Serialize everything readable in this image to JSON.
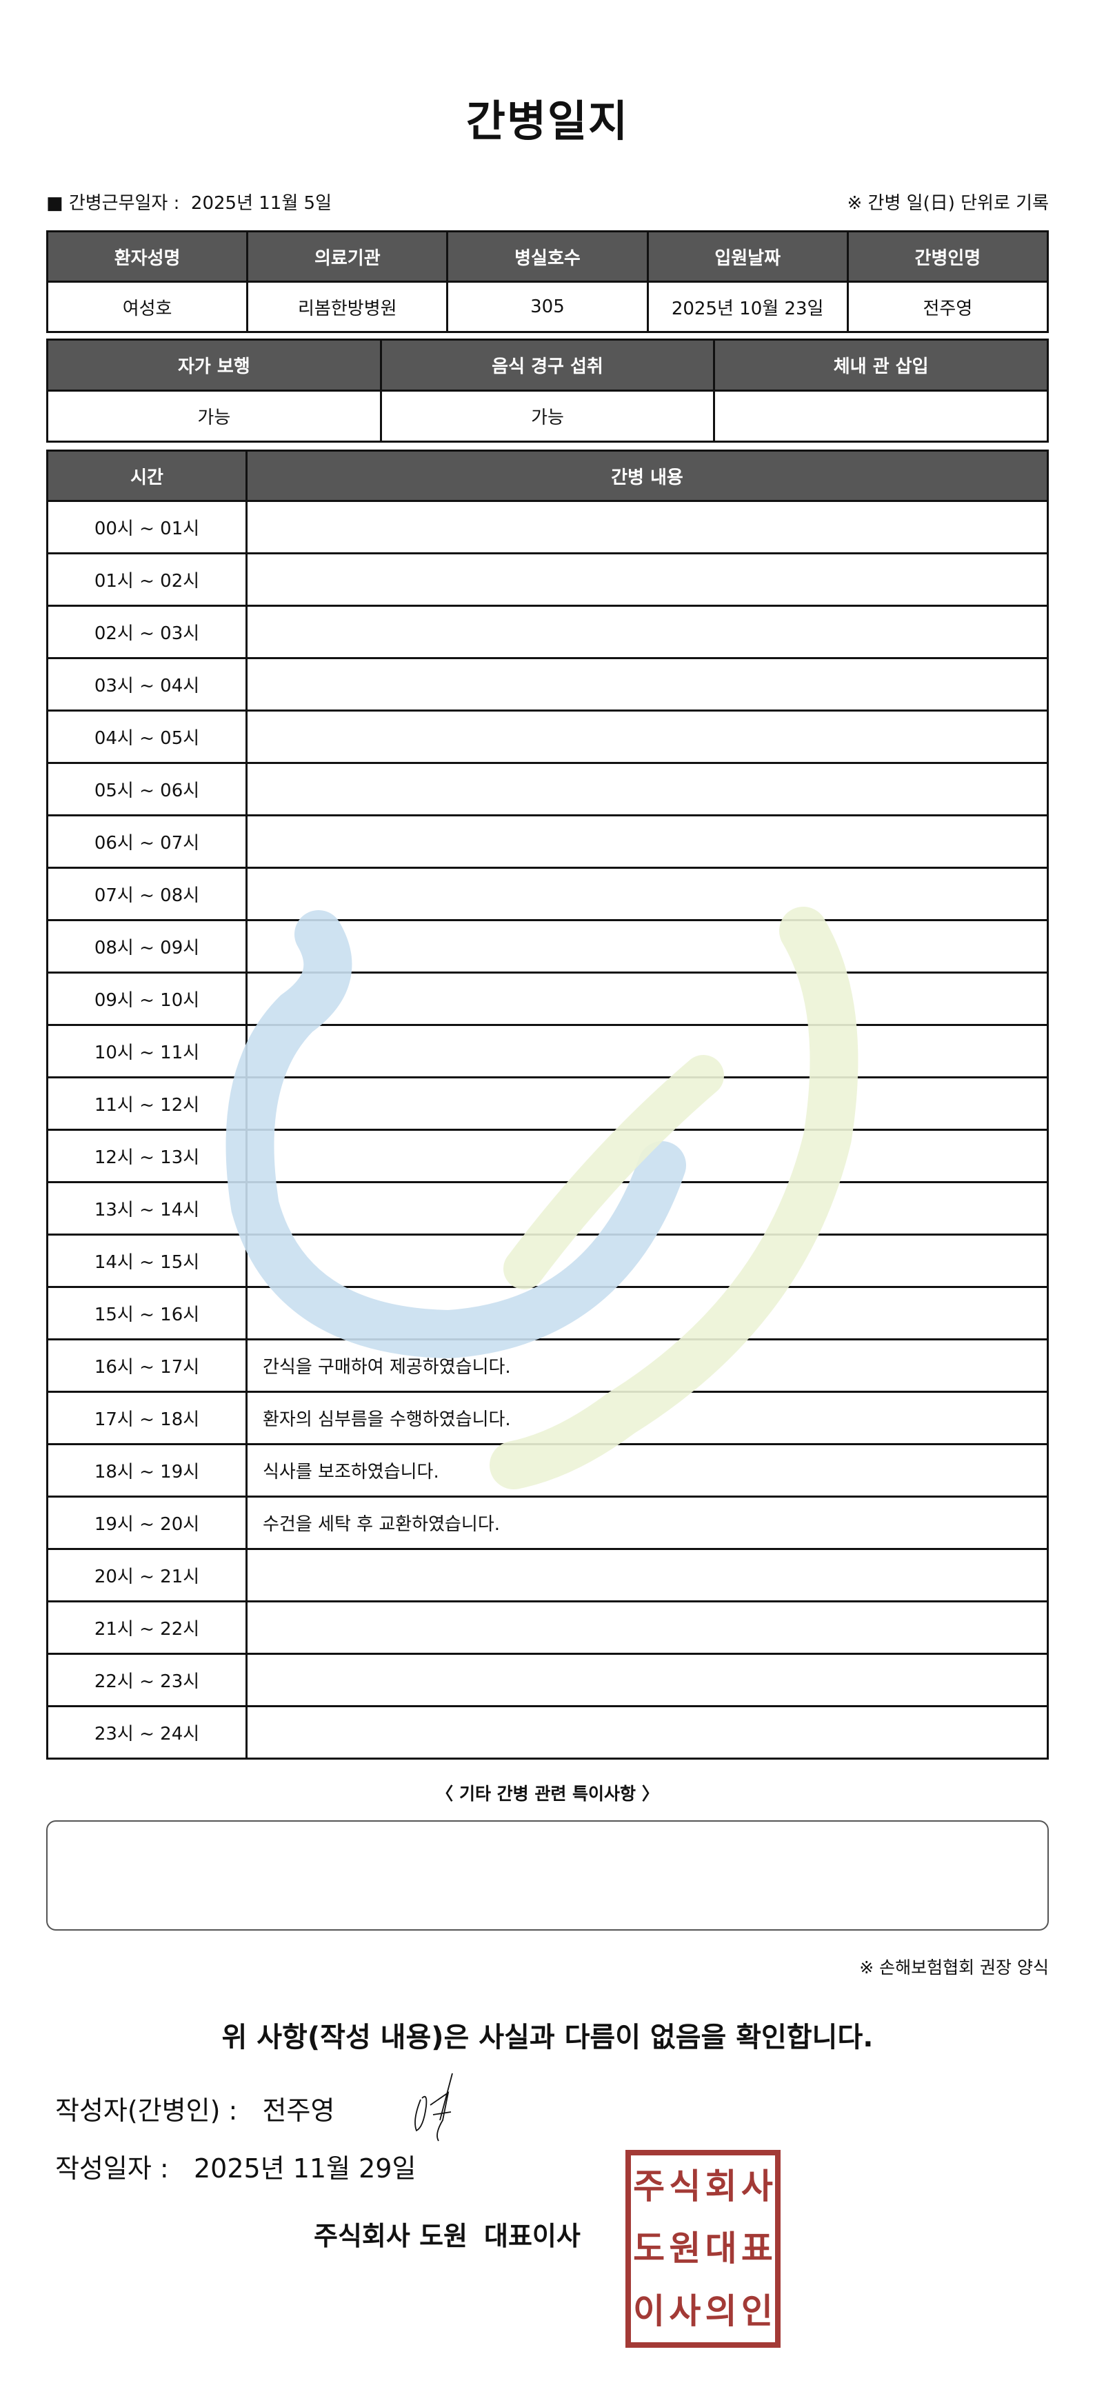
{
  "title": "간병일지",
  "info": {
    "work_date_label": "■ 간병근무일자 :",
    "work_date": "2025년 11월 5일",
    "note": "※ 간병 일(日) 단위로 기록"
  },
  "patient_table": {
    "headers": [
      "환자성명",
      "의료기관",
      "병실호수",
      "입원날짜",
      "간병인명"
    ],
    "values": [
      "여성호",
      "리봄한방병원",
      "305",
      "2025년 10월 23일",
      "전주영"
    ]
  },
  "status_table": {
    "headers": [
      "자가 보행",
      "음식 경구 섭취",
      "체내 관 삽입"
    ],
    "values": [
      "가능",
      "가능",
      ""
    ]
  },
  "care_table": {
    "headers": [
      "시간",
      "간병 내용"
    ],
    "rows": [
      {
        "time": "00시 ~ 01시",
        "content": ""
      },
      {
        "time": "01시 ~ 02시",
        "content": ""
      },
      {
        "time": "02시 ~ 03시",
        "content": ""
      },
      {
        "time": "03시 ~ 04시",
        "content": ""
      },
      {
        "time": "04시 ~ 05시",
        "content": ""
      },
      {
        "time": "05시 ~ 06시",
        "content": ""
      },
      {
        "time": "06시 ~ 07시",
        "content": ""
      },
      {
        "time": "07시 ~ 08시",
        "content": ""
      },
      {
        "time": "08시 ~ 09시",
        "content": ""
      },
      {
        "time": "09시 ~ 10시",
        "content": ""
      },
      {
        "time": "10시 ~ 11시",
        "content": ""
      },
      {
        "time": "11시 ~ 12시",
        "content": ""
      },
      {
        "time": "12시 ~ 13시",
        "content": ""
      },
      {
        "time": "13시 ~ 14시",
        "content": ""
      },
      {
        "time": "14시 ~ 15시",
        "content": ""
      },
      {
        "time": "15시 ~ 16시",
        "content": ""
      },
      {
        "time": "16시 ~ 17시",
        "content": "간식을 구매하여 제공하였습니다."
      },
      {
        "time": "17시 ~ 18시",
        "content": "환자의 심부름을 수행하였습니다."
      },
      {
        "time": "18시 ~ 19시",
        "content": "식사를 보조하였습니다."
      },
      {
        "time": "19시 ~ 20시",
        "content": "수건을 세탁 후 교환하였습니다."
      },
      {
        "time": "20시 ~ 21시",
        "content": ""
      },
      {
        "time": "21시 ~ 22시",
        "content": ""
      },
      {
        "time": "22시 ~ 23시",
        "content": ""
      },
      {
        "time": "23시 ~ 24시",
        "content": ""
      }
    ]
  },
  "notes": {
    "title": "〈 기타 간병 관련 특이사항 〉",
    "value": ""
  },
  "form_note": "※ 손해보험협회 권장 양식",
  "confirm_text": "위 사항(작성 내용)은 사실과 다름이 없음을 확인합니다.",
  "writer": {
    "label": "작성자(간병인) :",
    "name": "전주영"
  },
  "written_date": {
    "label": "작성일자 :",
    "value": "2025년 11월 29일"
  },
  "company": {
    "name": "주식회사 도원",
    "title": "대표이사"
  },
  "stamp": {
    "text": "주식회사도원대표이사의인",
    "color": "#a33a36"
  },
  "colors": {
    "header_bg": "#575757",
    "watermark_blue": "#c9dff0",
    "watermark_green": "#ecf3d6"
  }
}
